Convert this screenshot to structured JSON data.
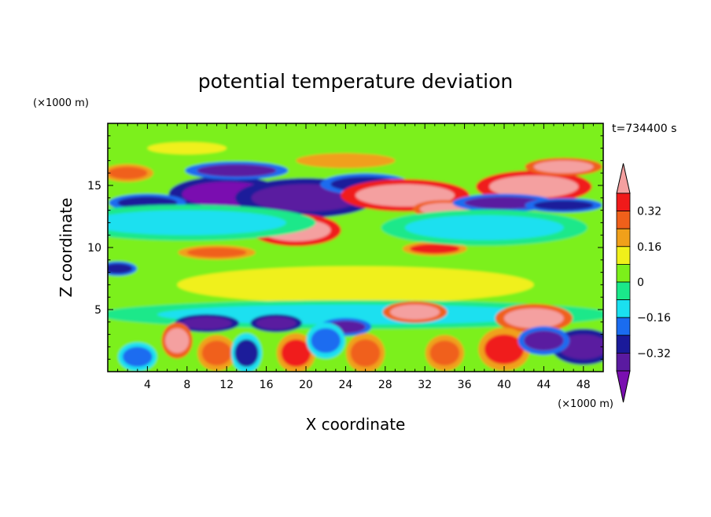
{
  "chart_data": {
    "type": "heatmap",
    "title": "potential temperature deviation",
    "xlabel": "X coordinate",
    "ylabel": "Z coordinate",
    "x_unit": "(×1000 m)",
    "y_unit": "(×1000 m)",
    "time_label": "t=734400 s",
    "xlim": [
      0,
      50
    ],
    "ylim": [
      0,
      20
    ],
    "x_ticks": [
      4,
      8,
      12,
      16,
      20,
      24,
      28,
      32,
      36,
      40,
      44,
      48
    ],
    "y_ticks": [
      5,
      10,
      15
    ],
    "colorbar": {
      "levels": [
        -0.4,
        -0.32,
        -0.24,
        -0.16,
        -0.08,
        0,
        0.08,
        0.16,
        0.24,
        0.32,
        0.4
      ],
      "labeled_levels": [
        0.32,
        0.16,
        0,
        -0.16,
        -0.32
      ],
      "level_labels": [
        "0.32",
        "0.16",
        "0",
        "−0.16",
        "−0.32"
      ],
      "colors": [
        "#7a0fb0",
        "#5a1aa0",
        "#1a1a9a",
        "#1a6cf0",
        "#1ae0f0",
        "#1ae88a",
        "#7cf01a",
        "#f0f01a",
        "#f0a01a",
        "#f0601a",
        "#f01a1a",
        "#f4a0a0"
      ]
    },
    "features": [
      {
        "x": 12,
        "z": 14.3,
        "rx": 4.5,
        "rz": 1.0,
        "value": -0.42
      },
      {
        "x": 20,
        "z": 14.0,
        "rx": 5.5,
        "rz": 1.1,
        "value": -0.38
      },
      {
        "x": 26,
        "z": 15.1,
        "rx": 3.5,
        "rz": 0.6,
        "value": -0.3
      },
      {
        "x": 13,
        "z": 16.2,
        "rx": 4.0,
        "rz": 0.5,
        "value": -0.34
      },
      {
        "x": 4,
        "z": 13.6,
        "rx": 3.0,
        "rz": 0.5,
        "value": -0.3
      },
      {
        "x": 30,
        "z": 14.2,
        "rx": 5.0,
        "rz": 0.9,
        "value": 0.45
      },
      {
        "x": 19,
        "z": 11.4,
        "rx": 3.5,
        "rz": 0.9,
        "value": 0.45
      },
      {
        "x": 43,
        "z": 14.9,
        "rx": 4.5,
        "rz": 0.9,
        "value": 0.45
      },
      {
        "x": 46,
        "z": 16.5,
        "rx": 3.0,
        "rz": 0.5,
        "value": 0.42
      },
      {
        "x": 34,
        "z": 13.1,
        "rx": 2.5,
        "rz": 0.5,
        "value": 0.42
      },
      {
        "x": 33,
        "z": 9.9,
        "rx": 2.5,
        "rz": 0.4,
        "value": 0.32
      },
      {
        "x": 11,
        "z": 9.6,
        "rx": 3.0,
        "rz": 0.4,
        "value": 0.28
      },
      {
        "x": 24,
        "z": 17.0,
        "rx": 5.0,
        "rz": 0.6,
        "value": 0.16
      },
      {
        "x": 8,
        "z": 18.0,
        "rx": 4.0,
        "rz": 0.5,
        "value": 0.14
      },
      {
        "x": 2,
        "z": 16.0,
        "rx": 2.0,
        "rz": 0.5,
        "value": 0.3
      },
      {
        "x": 40,
        "z": 13.6,
        "rx": 4.0,
        "rz": 0.5,
        "value": -0.36
      },
      {
        "x": 46,
        "z": 13.4,
        "rx": 3.0,
        "rz": 0.4,
        "value": -0.32
      },
      {
        "x": 8,
        "z": 12.0,
        "rx": 10.0,
        "rz": 1.0,
        "value": -0.12
      },
      {
        "x": 38,
        "z": 11.6,
        "rx": 8.0,
        "rz": 1.0,
        "value": -0.12
      },
      {
        "x": 25,
        "z": 7.0,
        "rx": 18.0,
        "rz": 1.5,
        "value": 0.08
      },
      {
        "x": 25,
        "z": 4.6,
        "rx": 20.0,
        "rz": 0.8,
        "value": -0.14
      },
      {
        "x": 10,
        "z": 3.9,
        "rx": 2.5,
        "rz": 0.5,
        "value": -0.4
      },
      {
        "x": 17,
        "z": 3.9,
        "rx": 2.0,
        "rz": 0.5,
        "value": -0.38
      },
      {
        "x": 24,
        "z": 3.6,
        "rx": 2.0,
        "rz": 0.5,
        "value": -0.36
      },
      {
        "x": 31,
        "z": 4.8,
        "rx": 2.5,
        "rz": 0.6,
        "value": 0.42
      },
      {
        "x": 43,
        "z": 4.3,
        "rx": 3.0,
        "rz": 0.8,
        "value": 0.42
      },
      {
        "x": 7,
        "z": 2.5,
        "rx": 1.2,
        "rz": 1.0,
        "value": 0.4
      },
      {
        "x": 11,
        "z": 1.5,
        "rx": 1.5,
        "rz": 1.0,
        "value": 0.3
      },
      {
        "x": 19,
        "z": 1.5,
        "rx": 1.5,
        "rz": 1.1,
        "value": 0.32
      },
      {
        "x": 26,
        "z": 1.5,
        "rx": 1.5,
        "rz": 1.1,
        "value": 0.3
      },
      {
        "x": 34,
        "z": 1.5,
        "rx": 1.5,
        "rz": 1.0,
        "value": 0.28
      },
      {
        "x": 40,
        "z": 1.8,
        "rx": 2.0,
        "rz": 1.2,
        "value": 0.34
      },
      {
        "x": 48,
        "z": 2.0,
        "rx": 2.5,
        "rz": 1.0,
        "value": -0.4
      },
      {
        "x": 44,
        "z": 2.5,
        "rx": 2.0,
        "rz": 0.8,
        "value": -0.34
      },
      {
        "x": 14,
        "z": 1.5,
        "rx": 1.2,
        "rz": 1.1,
        "value": -0.26
      },
      {
        "x": 3,
        "z": 1.2,
        "rx": 1.5,
        "rz": 0.8,
        "value": -0.2
      },
      {
        "x": 22,
        "z": 2.5,
        "rx": 1.5,
        "rz": 1.0,
        "value": -0.22
      },
      {
        "x": 1,
        "z": 8.3,
        "rx": 1.5,
        "rz": 0.4,
        "value": -0.3
      },
      {
        "x": 30,
        "z": 18.6,
        "rx": 8.0,
        "rz": 0.8,
        "value": 0.03
      },
      {
        "x": 45,
        "z": 18.6,
        "rx": 5.0,
        "rz": 0.8,
        "value": 0.04
      }
    ]
  }
}
